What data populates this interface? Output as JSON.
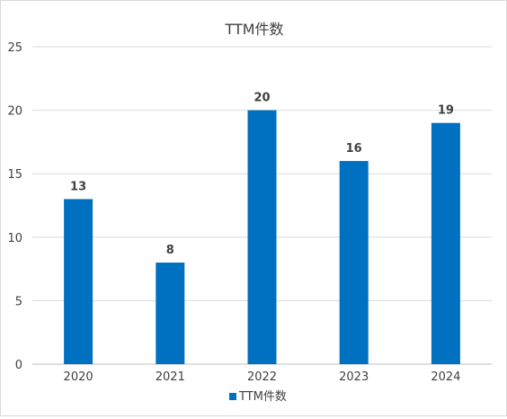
{
  "chart_data": {
    "type": "bar",
    "title": "TTM件数",
    "categories": [
      "2020",
      "2021",
      "2022",
      "2023",
      "2024"
    ],
    "series": [
      {
        "name": "TTM件数",
        "values": [
          13,
          8,
          20,
          16,
          19
        ]
      }
    ],
    "ylim": [
      0,
      25
    ],
    "yticks": [
      0,
      5,
      10,
      15,
      20,
      25
    ],
    "grid": true,
    "legend_position": "bottom",
    "data_labels": true,
    "colors": {
      "bar": "#0070C0",
      "grid": "#d9d9d9",
      "text": "#404040",
      "axis": "#bfbfbf"
    }
  }
}
